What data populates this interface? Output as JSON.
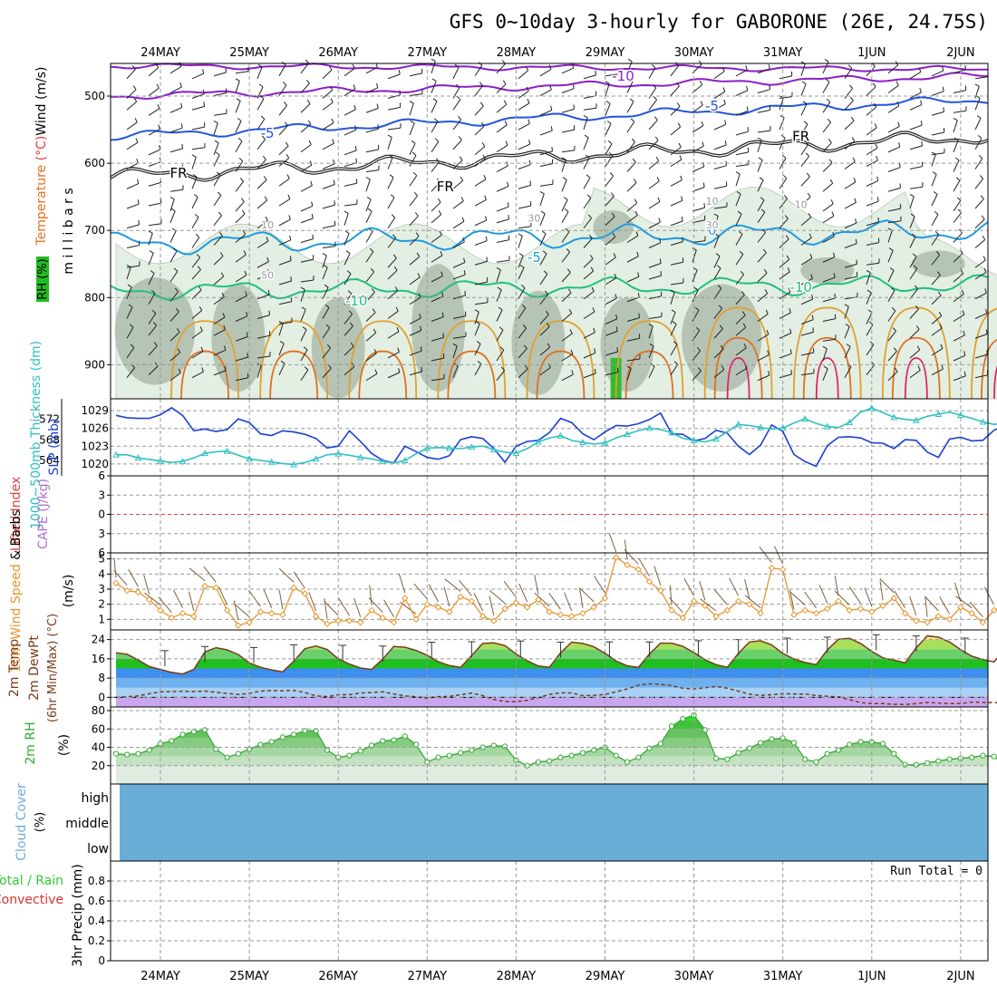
{
  "title": "GFS 0~10day 3-hourly for GABORONE (26E, 24.75S)",
  "colors": {
    "date_axis": "#000000",
    "temperature_neg10": "#8b1fc8",
    "temperature_neg5": "#2255dd",
    "freezing": "#000000",
    "temperature_0": "#1e9be0",
    "temperature_5": "#18a0d8",
    "temperature_10": "#20c080",
    "temperature_warm": "#e0a030",
    "temperature_warmer": "#e07020",
    "temperature_hot": "#e0206e",
    "rh_light": "#e3efe2",
    "rh_mid": "#c8d9c7",
    "rh_dark": "#a7b6a6",
    "slp": "#1c3fd4",
    "thickness": "#30c0c0",
    "lifted_index": "#e04040",
    "wind_speed": "#e6962e",
    "cloud_cover": "#6aaed8",
    "rh2m": "#33aa33",
    "precip_total": "#33cc33",
    "precip_convective": "#e03030"
  },
  "chart_data": [
    {
      "type": "contour",
      "panel": "upper-air",
      "x": [
        "24MAY",
        "25MAY",
        "26MAY",
        "27MAY",
        "28MAY",
        "29MAY",
        "30MAY",
        "31MAY",
        "1JUN",
        "2JUN"
      ],
      "ylabel": "Wind (m/s)",
      "ylabel2": "Temperature (°C)",
      "ylabel3": "RH (%)",
      "yunit": "m i l l i b a r s",
      "yticks": [
        500,
        600,
        700,
        800,
        900
      ],
      "ylim": [
        1000,
        450
      ],
      "contour_labels": [
        {
          "text": "-10",
          "x": "29MAY",
          "p": 470
        },
        {
          "text": "-5",
          "x": "30MAY",
          "p": 515
        },
        {
          "text": "-5",
          "x": "25MAY",
          "p": 555
        },
        {
          "text": "FR",
          "x": "24MAY",
          "p": 615
        },
        {
          "text": "FR",
          "x": "27MAY",
          "p": 635
        },
        {
          "text": "FR",
          "x": "31MAY",
          "p": 560
        },
        {
          "text": "-5",
          "x": "28MAY",
          "p": 740
        },
        {
          "text": "-10",
          "x": "26MAY",
          "p": 805
        },
        {
          "text": "-10",
          "x": "31MAY",
          "p": 785
        },
        {
          "text": "0",
          "x": "30MAY",
          "p": 700
        },
        {
          "text": "10",
          "x": "25MAY",
          "p": 690
        },
        {
          "text": "30",
          "x": "28MAY",
          "p": 680
        },
        {
          "text": "10",
          "x": "30MAY",
          "p": 655
        },
        {
          "text": "10",
          "x": "31MAY",
          "p": 660
        },
        {
          "text": "50",
          "x": "25MAY",
          "p": 765
        },
        {
          "text": "30",
          "x": "30MAY",
          "p": 690
        }
      ],
      "contour_colors": {
        "-10": "temperature_neg10",
        "-5": "temperature_neg5",
        "FR": "freezing",
        "0": "temperature_0",
        "5": "temperature_5",
        "10": "temperature_10",
        "15": "temperature_warm",
        "20": "temperature_warmer",
        "25": "temperature_hot"
      }
    },
    {
      "type": "line",
      "panel": "thickness-slp",
      "ylabel": "1000~500mb Thickness (dm)",
      "ylabel2": "SLP (mb)",
      "left_ticks": [
        564,
        568,
        572
      ],
      "left_ylim": [
        561,
        576
      ],
      "right_ticks": [
        1020,
        1023,
        1026,
        1029
      ],
      "right_ylim": [
        1018,
        1031
      ],
      "series": [
        {
          "name": "SLP (mb)",
          "axis": "right",
          "values": [
            1028.2,
            1027.8,
            1027.7,
            1027.7,
            1028.3,
            1029.5,
            1028.2,
            1025.6,
            1025.9,
            1025.5,
            1025.8,
            1027.6,
            1027.0,
            1025.1,
            1024.8,
            1025.6,
            1025.4,
            1025.0,
            1024.3,
            1022.7,
            1023.0,
            1025.6,
            1023.8,
            1021.8,
            1020.6,
            1020.2,
            1023.0,
            1022.1,
            1021.1,
            1020.8,
            1021.4,
            1024.1,
            1024.6,
            1024.3,
            1022.6,
            1020.3,
            1023.0,
            1023.8,
            1024.0,
            1025.3,
            1027.7,
            1027.0,
            1025.1,
            1024.1,
            1025.4,
            1026.5,
            1026.4,
            1026.8,
            1027.5,
            1028.6,
            1025.1,
            1025.0,
            1023.9,
            1024.3,
            1025.7,
            1025.2,
            1023.0,
            1021.6,
            1023.2,
            1026.6,
            1025.5,
            1021.6,
            1020.4,
            1019.6,
            1023.1,
            1024.5,
            1024.6,
            1024.4,
            1023.6,
            1023.5,
            1022.6,
            1024.1,
            1024.0,
            1022.0,
            1021.1,
            1024.2,
            1024.5,
            1023.9,
            1024.0,
            1025.7,
            1026.5,
            1026.9,
            1025.3,
            1021.7,
            1020.5,
            1024.6,
            1025.3,
            1025.5,
            1025.9,
            1026.9
          ]
        },
        {
          "name": "1000~500mb Thickness (dm)",
          "axis": "left",
          "values": [
            565.1,
            565.1,
            564.5,
            564.2,
            563.9,
            563.6,
            563.8,
            564.5,
            565.4,
            565.7,
            565.8,
            565.0,
            564.3,
            564.0,
            563.7,
            563.4,
            563.2,
            563.6,
            564.3,
            565.1,
            565.3,
            565.0,
            564.6,
            564.3,
            563.8,
            563.5,
            564.0,
            565.3,
            566.4,
            566.5,
            566.4,
            566.3,
            566.6,
            566.8,
            566.1,
            565.6,
            565.4,
            566.3,
            567.6,
            568.4,
            568.8,
            567.9,
            567.5,
            567.2,
            567.4,
            568.4,
            569.1,
            569.8,
            570.3,
            570.0,
            569.4,
            568.3,
            567.9,
            567.6,
            568.2,
            569.6,
            571.0,
            570.8,
            570.4,
            570.1,
            570.3,
            571.3,
            572.1,
            571.2,
            570.6,
            570.4,
            571.4,
            573.4,
            574.2,
            573.3,
            572.4,
            572.0,
            571.8,
            572.6,
            573.0,
            573.4,
            572.8,
            572.2,
            571.5,
            571.0,
            571.3,
            571.9,
            572.6,
            573.2,
            573.6,
            573.0,
            572.3,
            571.6,
            571.3,
            570.8
          ]
        }
      ]
    },
    {
      "type": "line",
      "panel": "lifted-index",
      "ylabel": "Lifted Index",
      "ylabel2": "CAPE (J/kg)",
      "yticks": [
        -6,
        -3,
        0,
        3,
        6
      ],
      "yticklabels": [
        "6",
        "3",
        "0",
        "3",
        "6"
      ],
      "ylim": [
        -6,
        6
      ],
      "reference_line": 0
    },
    {
      "type": "line",
      "panel": "10m-wind",
      "ylabel": "10m Wind Speed & Barbs (m/s)",
      "yticks": [
        1,
        2,
        3,
        4,
        5
      ],
      "ylim": [
        0.3,
        5.4
      ],
      "series": [
        {
          "name": "10m Wind Speed",
          "values": [
            3.4,
            2.9,
            2.8,
            2.3,
            1.6,
            1.1,
            1.4,
            1.2,
            3.2,
            3.1,
            1.6,
            0.6,
            0.8,
            1.5,
            1.4,
            1.3,
            3.1,
            2.7,
            1.2,
            0.7,
            0.9,
            0.9,
            0.8,
            1.6,
            1.1,
            0.8,
            2.4,
            1.0,
            2.0,
            1.8,
            1.5,
            2.5,
            2.2,
            1.2,
            0.9,
            1.7,
            2.1,
            1.8,
            2.3,
            1.5,
            1.3,
            1.2,
            1.4,
            1.8,
            2.4,
            5.1,
            4.6,
            4.3,
            3.5,
            2.9,
            1.6,
            1.1,
            2.2,
            1.9,
            1.2,
            1.6,
            2.2,
            2.0,
            1.4,
            4.4,
            4.3,
            1.3,
            1.6,
            1.4,
            1.7,
            2.2,
            1.6,
            1.7,
            1.5,
            1.9,
            2.4,
            1.4,
            0.9,
            0.8,
            1.2,
            1.0,
            1.8,
            1.4,
            0.8,
            1.6,
            1.9,
            0.6,
            1.5,
            1.2,
            1.0,
            0.8,
            1.9,
            1.0,
            2.0,
            1.8
          ]
        }
      ]
    },
    {
      "type": "area",
      "panel": "2m-temp",
      "ylabel": "2m Temp",
      "ylabel2": "2m DewPt",
      "ylabel3": "(6hr Min/Max) (°C)",
      "yticks": [
        0,
        8,
        16,
        24
      ],
      "ylim": [
        -4,
        28
      ],
      "series": [
        {
          "name": "2m Temp",
          "values": [
            18.5,
            17.9,
            15.5,
            12.8,
            11.6,
            10.4,
            9.7,
            11.6,
            18.9,
            20.6,
            19.7,
            17.8,
            14.3,
            12.5,
            11.4,
            10.6,
            15.0,
            20.2,
            21.3,
            19.9,
            16.0,
            13.8,
            12.2,
            11.6,
            15.9,
            21.1,
            20.8,
            19.5,
            17.5,
            14.8,
            13.2,
            12.4,
            17.3,
            22.4,
            22.6,
            21.5,
            18.0,
            15.2,
            13.0,
            12.5,
            18.5,
            22.9,
            22.4,
            21.0,
            18.3,
            15.1,
            13.1,
            12.4,
            18.0,
            22.5,
            22.5,
            21.2,
            18.6,
            15.6,
            13.6,
            12.5,
            18.2,
            23.0,
            23.5,
            21.8,
            18.2,
            15.9,
            14.5,
            13.6,
            19.7,
            24.1,
            24.5,
            22.4,
            19.1,
            16.4,
            15.5,
            14.3,
            20.6,
            25.5,
            25.0,
            23.0,
            19.8,
            17.1,
            15.7,
            14.7,
            20.4,
            24.1,
            25.0,
            22.6,
            19.2,
            17.0,
            15.6,
            14.0,
            12.7,
            12.6
          ]
        },
        {
          "name": "2m DewPt",
          "values": [
            0.0,
            0.2,
            0.6,
            1.5,
            2.3,
            2.4,
            2.5,
            2.4,
            2.6,
            2.1,
            1.6,
            1.2,
            1.6,
            2.6,
            2.8,
            2.7,
            2.9,
            2.0,
            0.6,
            0.3,
            1.1,
            1.1,
            1.8,
            2.0,
            2.3,
            1.4,
            0.6,
            0.2,
            -0.3,
            0.3,
            0.4,
            1.1,
            1.8,
            0.7,
            -0.9,
            -1.7,
            -1.8,
            -1.2,
            -0.1,
            1.2,
            1.9,
            1.8,
            0.7,
            0.8,
            1.2,
            2.3,
            3.5,
            5.0,
            5.6,
            5.4,
            4.8,
            3.8,
            3.5,
            4.0,
            4.5,
            3.8,
            2.6,
            1.3,
            0.8,
            1.1,
            1.5,
            1.4,
            1.4,
            0.8,
            0.4,
            0.2,
            -1.0,
            -2.2,
            -2.6,
            -2.6,
            -2.9,
            -3.0,
            -2.6,
            -2.1,
            -2.4,
            -2.6,
            -2.6,
            -2.0,
            -2.1,
            -2.2,
            -2.3,
            -2.1,
            -1.6,
            -1.7,
            -2.1,
            -2.4,
            -2.1,
            -1.8,
            -1.7,
            -1.6
          ]
        }
      ],
      "minmax": [
        [
          18.9,
          20.6
        ],
        [
          20.2,
          21.3
        ],
        [
          21.1,
          20.8
        ],
        [
          22.4,
          22.6
        ],
        [
          22.9,
          22.4
        ],
        [
          22.5,
          22.5
        ],
        [
          23.0,
          23.5
        ],
        [
          24.1,
          24.5
        ],
        [
          25.5,
          25.0
        ],
        [
          24.1,
          25.0
        ]
      ]
    },
    {
      "type": "area",
      "panel": "2m-rh",
      "ylabel": "2m RH (%)",
      "yticks": [
        20,
        40,
        60,
        80
      ],
      "ylim": [
        0,
        84
      ],
      "series": [
        {
          "name": "2m RH",
          "values": [
            33,
            32,
            33,
            37,
            44,
            47,
            54,
            57,
            59,
            38,
            29,
            33,
            38,
            43,
            46,
            51,
            54,
            58,
            58,
            37,
            29,
            31,
            36,
            42,
            47,
            48,
            52,
            43,
            24,
            29,
            31,
            34,
            37,
            40,
            42,
            41,
            26,
            20,
            24,
            25,
            29,
            31,
            34,
            37,
            40,
            31,
            24,
            29,
            39,
            44,
            63,
            71,
            75,
            59,
            28,
            27,
            34,
            39,
            45,
            49,
            50,
            45,
            27,
            24,
            33,
            37,
            43,
            46,
            46,
            44,
            33,
            21,
            21,
            23,
            25,
            27,
            28,
            29,
            31,
            30,
            20,
            14,
            17,
            20,
            22,
            25,
            28,
            30,
            31,
            30
          ]
        }
      ]
    },
    {
      "type": "area",
      "panel": "cloud-cover",
      "ylabel": "Cloud Cover (%)",
      "levels": [
        "high",
        "middle",
        "low"
      ],
      "series": [
        {
          "name": "high",
          "values": []
        },
        {
          "name": "middle",
          "values": []
        },
        {
          "name": "low",
          "values": []
        }
      ]
    },
    {
      "type": "bar",
      "panel": "precip",
      "ylabel": "3hr Precip (mm)",
      "legend": [
        "Total / Rain",
        "Convective"
      ],
      "yticks": [
        0,
        0.2,
        0.4,
        0.6,
        0.8
      ],
      "ylim": [
        0,
        1.0
      ],
      "annotation": "Run Total = 0",
      "series": [
        {
          "name": "Total / Rain",
          "values": []
        },
        {
          "name": "Convective",
          "values": []
        }
      ]
    }
  ]
}
